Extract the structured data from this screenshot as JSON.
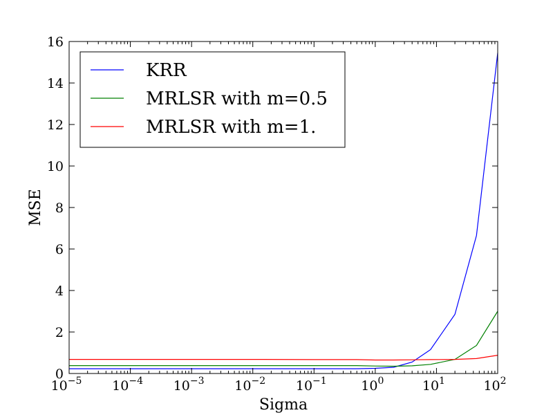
{
  "chart_data": {
    "type": "line",
    "title": "",
    "xlabel": "Sigma",
    "ylabel": "MSE",
    "xscale": "log",
    "xlim": [
      1e-05,
      100
    ],
    "ylim": [
      0,
      16
    ],
    "grid": false,
    "legend_position": "top-left",
    "x_tick_labels": [
      {
        "base": "10",
        "exp": "−5",
        "value": 1e-05
      },
      {
        "base": "10",
        "exp": "−4",
        "value": 0.0001
      },
      {
        "base": "10",
        "exp": "−3",
        "value": 0.001
      },
      {
        "base": "10",
        "exp": "−2",
        "value": 0.01
      },
      {
        "base": "10",
        "exp": "−1",
        "value": 0.1
      },
      {
        "base": "10",
        "exp": "0",
        "value": 1
      },
      {
        "base": "10",
        "exp": "1",
        "value": 10
      },
      {
        "base": "10",
        "exp": "2",
        "value": 100
      }
    ],
    "y_tick_labels": [
      "0",
      "2",
      "4",
      "6",
      "8",
      "10",
      "12",
      "14",
      "16"
    ],
    "x": [
      1e-05,
      0.0001,
      0.001,
      0.01,
      0.1,
      0.5,
      1,
      2,
      4,
      8,
      20,
      45,
      100
    ],
    "series": [
      {
        "name": "KRR",
        "color": "#0000ff",
        "values": [
          0.23,
          0.23,
          0.23,
          0.23,
          0.23,
          0.23,
          0.25,
          0.3,
          0.55,
          1.15,
          2.85,
          6.65,
          15.45
        ]
      },
      {
        "name": "MRLSR with m=0.5",
        "color": "#008000",
        "values": [
          0.38,
          0.38,
          0.38,
          0.38,
          0.38,
          0.38,
          0.36,
          0.35,
          0.37,
          0.44,
          0.68,
          1.35,
          3.0
        ]
      },
      {
        "name": "MRLSR with m=1.",
        "color": "#ff0000",
        "values": [
          0.68,
          0.68,
          0.68,
          0.68,
          0.67,
          0.67,
          0.65,
          0.65,
          0.66,
          0.67,
          0.68,
          0.72,
          0.88
        ]
      }
    ]
  }
}
